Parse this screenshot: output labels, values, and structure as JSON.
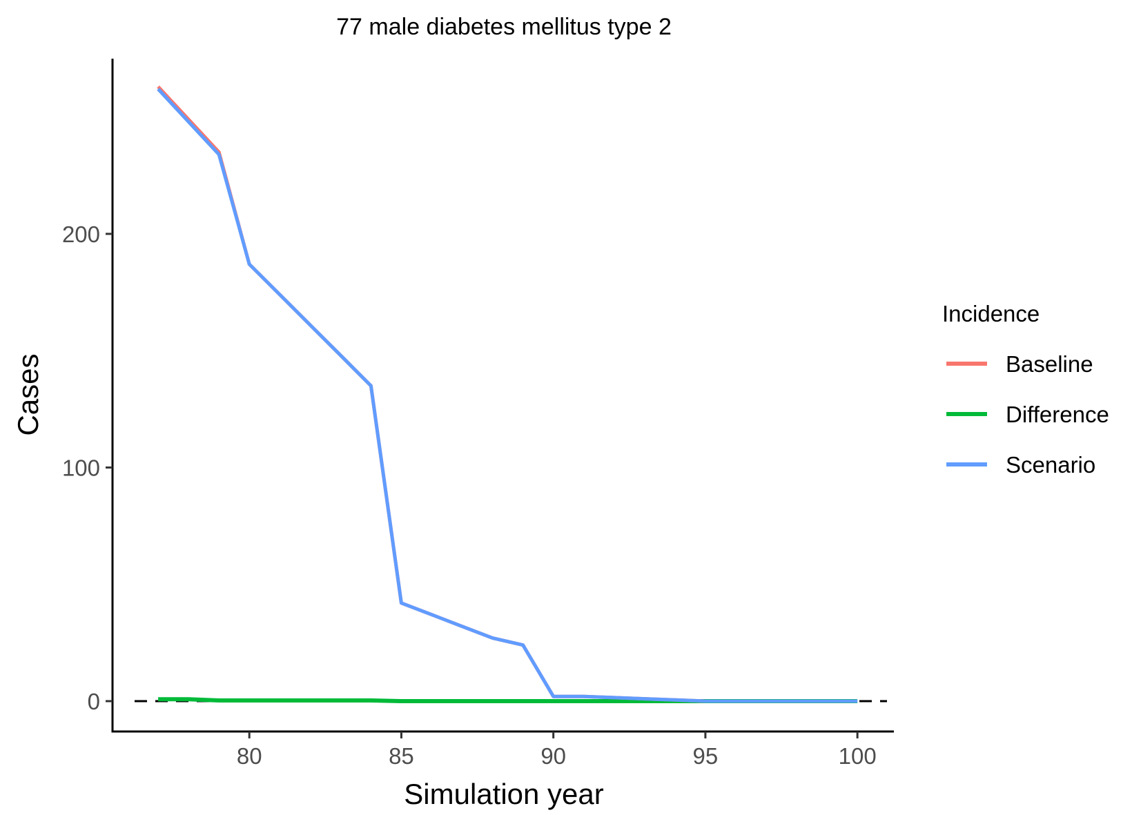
{
  "chart_data": {
    "type": "line",
    "title": "77 male diabetes mellitus type 2",
    "xlabel": "Simulation year",
    "ylabel": "Cases",
    "xlim": [
      75.5,
      101.2
    ],
    "ylim": [
      -13,
      275
    ],
    "x_ticks": [
      80,
      85,
      90,
      95,
      100
    ],
    "y_ticks": [
      0,
      100,
      200
    ],
    "grid": false,
    "reference_line": {
      "y": 0,
      "style": "dashed",
      "color": "#000000"
    },
    "legend": {
      "title": "Incidence",
      "position": "right",
      "entries": [
        "Baseline",
        "Difference",
        "Scenario"
      ]
    },
    "series": [
      {
        "name": "Baseline",
        "color": "#F8766D",
        "x": [
          77,
          78,
          79,
          80,
          81,
          82,
          83,
          84,
          85,
          86,
          87,
          88,
          89,
          90,
          91,
          92,
          93,
          94,
          95,
          96,
          97,
          98,
          99,
          100
        ],
        "y": [
          263,
          249,
          235,
          187,
          174,
          161,
          148,
          135,
          42,
          37,
          32,
          27,
          24,
          2,
          2,
          1.5,
          1,
          0.5,
          0,
          0,
          0,
          0,
          0,
          0
        ]
      },
      {
        "name": "Difference",
        "color": "#00BA38",
        "x": [
          77,
          78,
          79,
          80,
          81,
          82,
          83,
          84,
          85,
          86,
          87,
          88,
          89,
          90,
          91,
          92,
          93,
          94,
          95,
          96,
          97,
          98,
          99,
          100
        ],
        "y": [
          0.8,
          0.8,
          0.3,
          0.3,
          0.3,
          0.3,
          0.3,
          0.3,
          0,
          0,
          0,
          0,
          0,
          0,
          0,
          0,
          0,
          0,
          0,
          0,
          0,
          0,
          0,
          0
        ]
      },
      {
        "name": "Scenario",
        "color": "#619CFF",
        "x": [
          77,
          78,
          79,
          80,
          81,
          82,
          83,
          84,
          85,
          86,
          87,
          88,
          89,
          90,
          91,
          92,
          93,
          94,
          95,
          96,
          97,
          98,
          99,
          100
        ],
        "y": [
          262,
          248,
          234,
          187,
          174,
          161,
          148,
          135,
          42,
          37,
          32,
          27,
          24,
          2,
          2,
          1.5,
          1,
          0.5,
          0,
          0,
          0,
          0,
          0,
          0
        ]
      }
    ]
  }
}
